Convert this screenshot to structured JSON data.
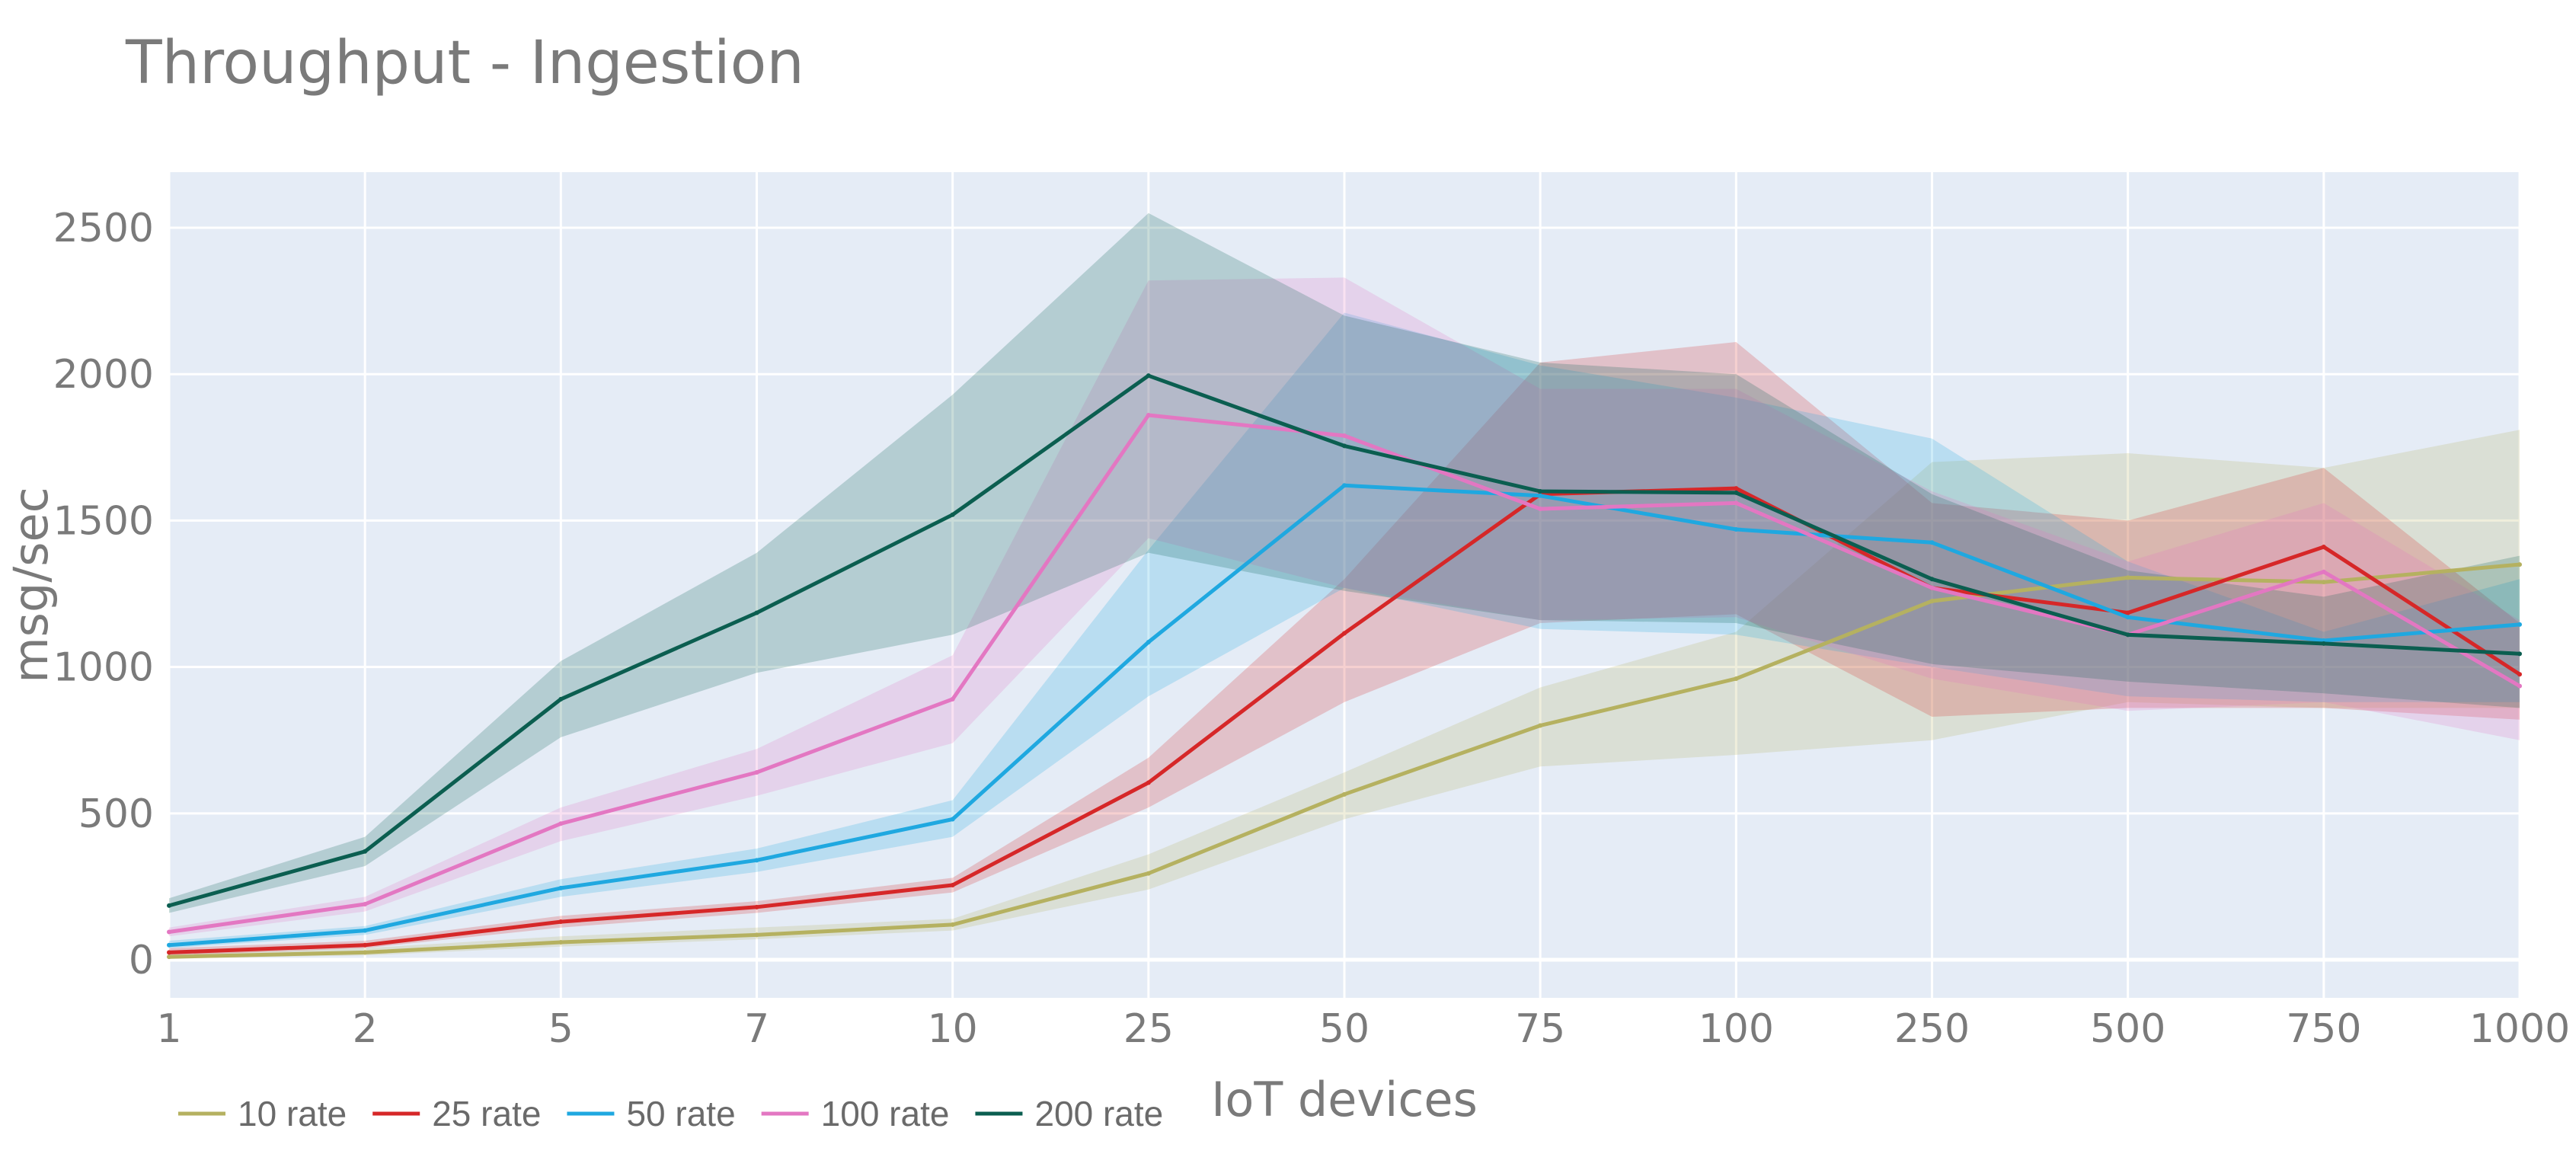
{
  "chart_data": {
    "type": "line",
    "title": "Throughput - Ingestion",
    "xlabel": "IoT devices",
    "ylabel": "msg/sec",
    "categories": [
      "1",
      "2",
      "5",
      "7",
      "10",
      "25",
      "50",
      "75",
      "100",
      "250",
      "500",
      "750",
      "1000"
    ],
    "ylim": [
      -130,
      2690
    ],
    "yticks": [
      0,
      500,
      1000,
      1500,
      2000,
      2500
    ],
    "yticks_labels": [
      "0",
      "500",
      "1000",
      "1500",
      "2000",
      "2500"
    ],
    "grid": true,
    "legend_position": "bottom-left",
    "series": [
      {
        "name": "10 rate",
        "color": "#b5b160",
        "values": [
          10,
          25,
          60,
          85,
          120,
          295,
          565,
          800,
          960,
          1225,
          1305,
          1290,
          1350
        ],
        "lower": [
          5,
          15,
          45,
          70,
          100,
          240,
          480,
          660,
          700,
          750,
          880,
          860,
          860
        ],
        "upper": [
          20,
          40,
          80,
          110,
          140,
          360,
          640,
          930,
          1120,
          1700,
          1730,
          1680,
          1810
        ]
      },
      {
        "name": "25 rate",
        "color": "#d62728",
        "values": [
          25,
          50,
          130,
          180,
          255,
          605,
          1115,
          1590,
          1610,
          1270,
          1185,
          1410,
          975
        ],
        "lower": [
          15,
          40,
          110,
          160,
          230,
          520,
          880,
          1150,
          1180,
          830,
          860,
          860,
          820
        ],
        "upper": [
          40,
          65,
          150,
          200,
          280,
          690,
          1300,
          2040,
          2110,
          1560,
          1500,
          1680,
          1150
        ]
      },
      {
        "name": "50 rate",
        "color": "#1fa8e0",
        "values": [
          50,
          100,
          245,
          340,
          480,
          1085,
          1620,
          1585,
          1470,
          1425,
          1170,
          1090,
          1145
        ],
        "lower": [
          40,
          85,
          215,
          300,
          420,
          900,
          1270,
          1130,
          1110,
          1000,
          900,
          880,
          880
        ],
        "upper": [
          65,
          115,
          275,
          380,
          545,
          1400,
          2210,
          2030,
          1920,
          1780,
          1360,
          1120,
          1300
        ]
      },
      {
        "name": "100 rate",
        "color": "#e377c2",
        "values": [
          95,
          190,
          465,
          640,
          890,
          1860,
          1790,
          1540,
          1560,
          1270,
          1110,
          1325,
          935
        ],
        "lower": [
          80,
          165,
          405,
          560,
          740,
          1440,
          1270,
          1160,
          1170,
          960,
          850,
          880,
          750
        ],
        "upper": [
          110,
          215,
          520,
          720,
          1040,
          2320,
          2330,
          1950,
          1950,
          1600,
          1360,
          1560,
          1160
        ]
      },
      {
        "name": "200 rate",
        "color": "#0b5e50",
        "values": [
          185,
          370,
          890,
          1185,
          1520,
          1995,
          1755,
          1600,
          1595,
          1300,
          1110,
          1080,
          1045
        ],
        "lower": [
          160,
          320,
          760,
          980,
          1110,
          1390,
          1260,
          1160,
          1150,
          1010,
          950,
          910,
          860
        ],
        "upper": [
          210,
          420,
          1020,
          1390,
          1930,
          2550,
          2200,
          2040,
          2000,
          1590,
          1330,
          1240,
          1380
        ]
      }
    ]
  }
}
